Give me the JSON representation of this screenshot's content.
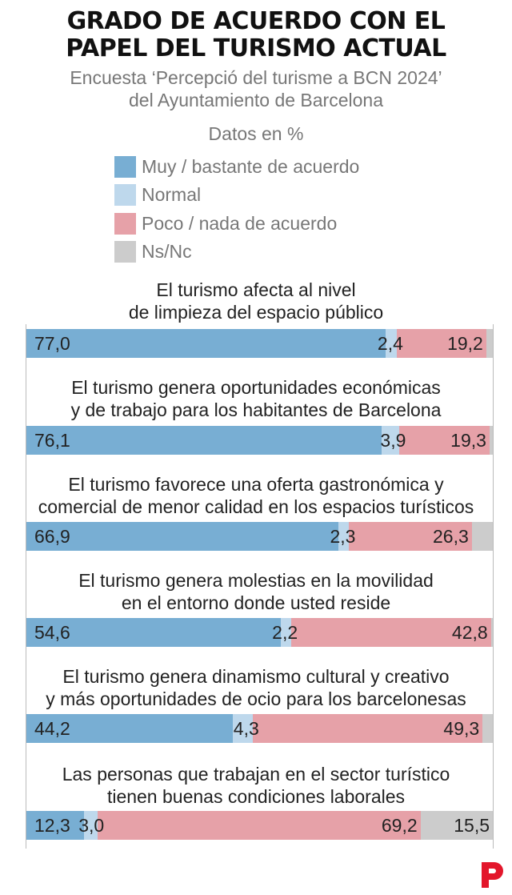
{
  "title_line1": "GRADO DE ACUERDO CON EL",
  "title_line2": "PAPEL DEL TURISMO ACTUAL",
  "subtitle_line1": "Encuesta ‘Percepció del turisme a BCN 2024’",
  "subtitle_line2": "del Ayuntamiento de Barcelona",
  "units_note": "Datos en %",
  "colors": {
    "muy": "#78aed3",
    "normal": "#bed8ec",
    "poco": "#e6a1a8",
    "nsnc": "#cccccc",
    "logo": "#e3162b"
  },
  "chart_data": {
    "type": "bar",
    "orientation": "horizontal",
    "stacked": true,
    "unit": "%",
    "legend_position": "top",
    "series": [
      {
        "name": "Muy / bastante de acuerdo",
        "values": [
          77.0,
          76.1,
          66.9,
          54.6,
          44.2,
          12.3
        ],
        "labels": [
          "77,0",
          "76,1",
          "66,9",
          "54,6",
          "44,2",
          "12,3"
        ]
      },
      {
        "name": "Normal",
        "values": [
          2.4,
          3.9,
          2.3,
          2.2,
          4.3,
          3.0
        ],
        "labels": [
          "2,4",
          "3,9",
          "2,3",
          "2,2",
          "4,3",
          "3,0"
        ]
      },
      {
        "name": "Poco / nada de acuerdo",
        "values": [
          19.2,
          19.3,
          26.3,
          42.8,
          49.3,
          69.2
        ],
        "labels": [
          "19,2",
          "19,3",
          "26,3",
          "42,8",
          "49,3",
          "69,2"
        ]
      },
      {
        "name": "Ns/Nc",
        "values": [
          1.4,
          0.7,
          4.5,
          0.4,
          2.2,
          15.5
        ],
        "labels": [
          "",
          "",
          "",
          "",
          "",
          "15,5"
        ]
      }
    ],
    "categories": [
      [
        "El turismo afecta al nivel",
        "de limpieza del espacio público"
      ],
      [
        "El turismo genera oportunidades económicas",
        "y de trabajo para los habitantes de Barcelona"
      ],
      [
        "El turismo favorece una oferta gastronómica y",
        "comercial de menor calidad en los espacios turísticos"
      ],
      [
        "El turismo genera molestias en la movilidad",
        "en el entorno donde usted reside"
      ],
      [
        "El turismo genera dinamismo cultural y creativo",
        "y más oportunidades de ocio para los barcelonesas"
      ],
      [
        "Las personas que trabajan en el sector turístico",
        "tienen buenas condiciones laborales"
      ]
    ]
  }
}
